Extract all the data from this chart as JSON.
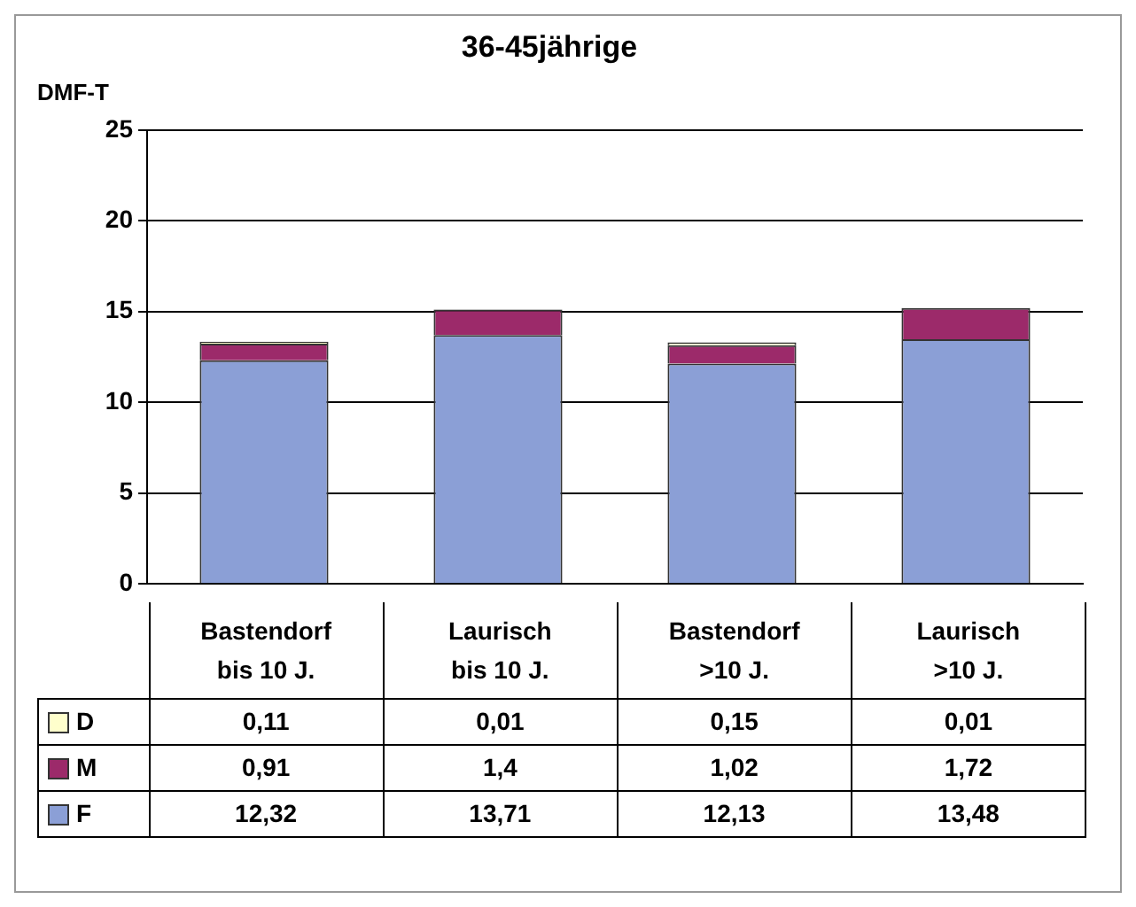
{
  "chart_data": {
    "type": "bar",
    "title": "36-45jährige",
    "ylabel": "DMF-T",
    "stacked": true,
    "grid": "y",
    "legend": "bottom left",
    "categories": [
      "Bastendorf bis 10 J.",
      "Laurisch bis 10 J.",
      "Bastendorf >10 J.",
      "Laurisch >10 J."
    ],
    "ylim": [
      0,
      25
    ],
    "yticks": [
      0,
      5,
      10,
      15,
      20,
      25
    ],
    "series": [
      {
        "name": "F",
        "color": "#8b9fd6",
        "values": [
          12.32,
          13.71,
          12.13,
          13.48
        ],
        "value_labels": [
          "12,32",
          "13,71",
          "12,13",
          "13,48"
        ]
      },
      {
        "name": "M",
        "color": "#9c2a6a",
        "values": [
          0.91,
          1.4,
          1.02,
          1.72
        ],
        "value_labels": [
          "0,91",
          "1,4",
          "1,02",
          "1,72"
        ]
      },
      {
        "name": "D",
        "color": "#ffffcc",
        "values": [
          0.11,
          0.01,
          0.15,
          0.01
        ],
        "value_labels": [
          "0,11",
          "0,01",
          "0,15",
          "0,01"
        ]
      }
    ]
  }
}
